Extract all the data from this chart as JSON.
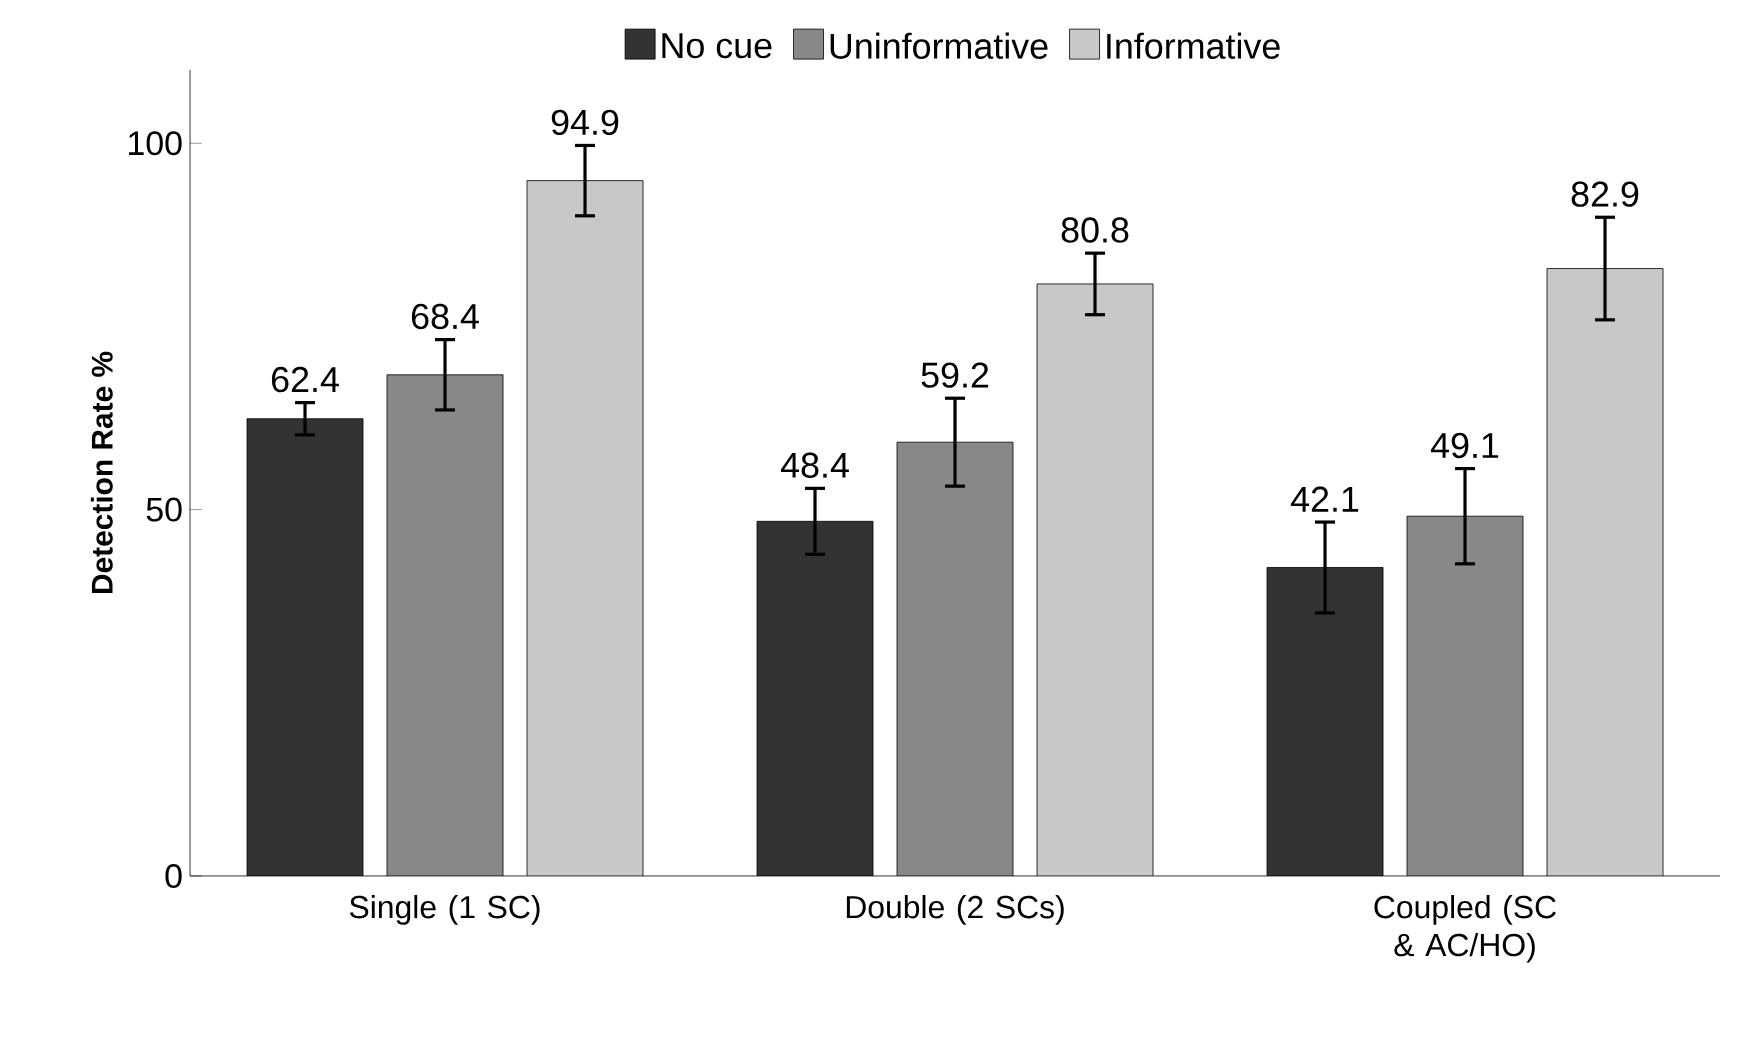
{
  "chart_data": {
    "type": "bar",
    "ylabel": "Detection Rate %",
    "categories": [
      "Single (1 SC)",
      "Double (2 SCs)",
      "Coupled (SC & AC/HO)"
    ],
    "series": [
      {
        "name": "No cue",
        "color": "#333333",
        "values": [
          62.4,
          48.4,
          42.1
        ],
        "errors": [
          2.2,
          4.5,
          6.2
        ]
      },
      {
        "name": "Uninformative",
        "color": "#888888",
        "values": [
          68.4,
          59.2,
          49.1
        ],
        "errors": [
          4.8,
          6,
          6.5
        ]
      },
      {
        "name": "Informative",
        "color": "#c8c8c8",
        "values": [
          94.9,
          80.8,
          82.9
        ],
        "errors": [
          4.8,
          4.2,
          7
        ]
      }
    ],
    "ylim": [
      0,
      110
    ],
    "yticks": [
      0,
      50,
      100
    ],
    "data_labels": true,
    "legend": "top",
    "grid": false
  }
}
